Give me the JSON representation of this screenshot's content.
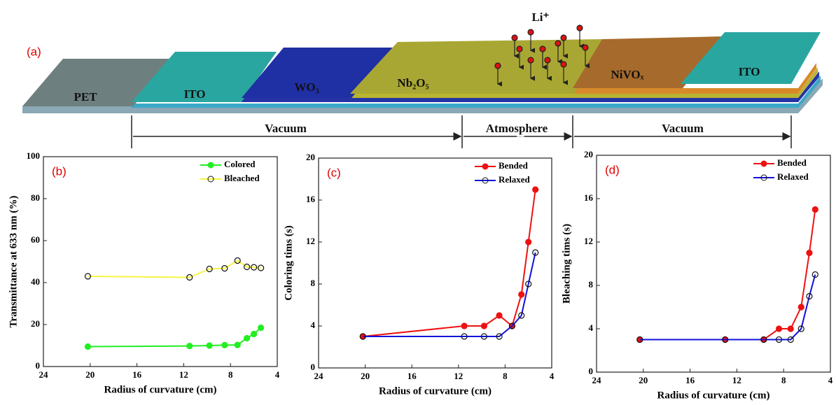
{
  "diagram": {
    "panel_label": "(a)",
    "layers": [
      "PET",
      "ITO",
      "WO₃",
      "Nb₂O₅",
      "NiVOₓ",
      "ITO"
    ],
    "ion": "Li⁺",
    "regions": [
      "Vacuum",
      "Atmosphere",
      "Vacuum"
    ]
  },
  "chart_data": [
    {
      "type": "line",
      "panel_label": "(b)",
      "x_label": "Radius of curvature (cm)",
      "y_label": "Transmittance at 633 nm (%)",
      "x": [
        20.2,
        11.5,
        9.8,
        8.5,
        7.4,
        6.6,
        6.0,
        5.4
      ],
      "series": [
        {
          "name": "Colored",
          "color": "#22ee22",
          "marker": "filled",
          "values": [
            9.5,
            9.8,
            10,
            10.2,
            10.3,
            13.5,
            15.5,
            18.5
          ]
        },
        {
          "name": "Bleached",
          "color": "#f5f542",
          "marker": "open",
          "values": [
            43,
            42.5,
            46.5,
            46.8,
            50.5,
            47.5,
            47.3,
            47
          ]
        }
      ],
      "xlim": [
        24,
        4
      ],
      "xticks": [
        24,
        20,
        16,
        12,
        8,
        4
      ],
      "ylim": [
        0,
        100
      ],
      "yticks": [
        0,
        20,
        40,
        60,
        80,
        100
      ],
      "legend": "top-right"
    },
    {
      "type": "line",
      "panel_label": "(c)",
      "x_label": "Radius of curvature (cm)",
      "y_label": "Coloring tims (s)",
      "x": [
        20.2,
        11.5,
        9.8,
        8.5,
        7.4,
        6.6,
        6.0,
        5.4
      ],
      "series": [
        {
          "name": "Bended",
          "color": "#ee1111",
          "marker": "filled",
          "values": [
            3,
            4,
            4,
            5,
            4,
            7,
            12,
            17
          ]
        },
        {
          "name": "Relaxed",
          "color": "#1111dd",
          "marker": "open",
          "values": [
            3,
            3,
            3,
            3,
            4,
            5,
            8,
            11
          ]
        }
      ],
      "xlim": [
        24,
        4
      ],
      "xticks": [
        24,
        20,
        16,
        12,
        8,
        4
      ],
      "ylim": [
        0,
        20
      ],
      "yticks": [
        0,
        4,
        8,
        12,
        16,
        20
      ],
      "legend": "top-right"
    },
    {
      "type": "line",
      "panel_label": "(d)",
      "x_label": "Radius of curvature (cm)",
      "y_label": "Bleaching tims (s)",
      "x": [
        20.3,
        13.0,
        9.7,
        8.4,
        7.4,
        6.5,
        5.8,
        5.3
      ],
      "series": [
        {
          "name": "Bended",
          "color": "#ee1111",
          "marker": "filled",
          "values": [
            3,
            3,
            3,
            4,
            4,
            6,
            11,
            15
          ]
        },
        {
          "name": "Relaxed",
          "color": "#1111dd",
          "marker": "open",
          "values": [
            3,
            3,
            3,
            3,
            3,
            4,
            7,
            9
          ]
        }
      ],
      "xlim": [
        24,
        4
      ],
      "xticks": [
        24,
        20,
        16,
        12,
        8,
        4
      ],
      "ylim": [
        0,
        20
      ],
      "yticks": [
        0,
        4,
        8,
        12,
        16,
        20
      ],
      "legend": "top-right"
    }
  ]
}
